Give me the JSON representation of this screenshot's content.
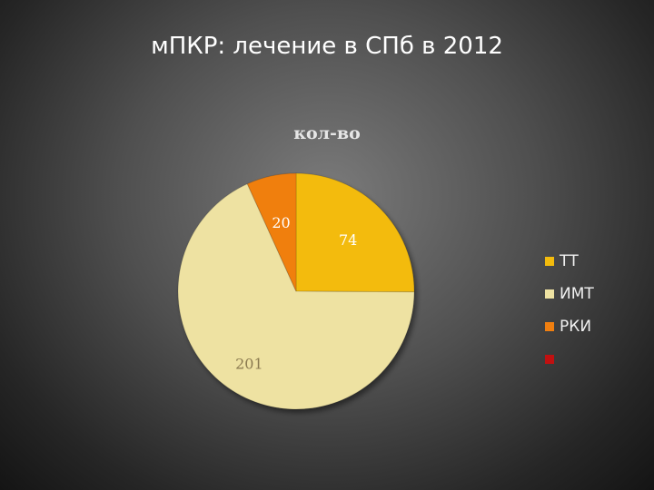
{
  "slide": {
    "title": "мПКР: лечение в СПб в 2012"
  },
  "chart_data": {
    "type": "pie",
    "title": "кол-во",
    "categories": [
      "ТТ",
      "ИМТ",
      "РКИ",
      ""
    ],
    "values": [
      74,
      201,
      20,
      0
    ],
    "data_labels": [
      "74",
      "201",
      "20",
      ""
    ],
    "colors": [
      "#f3bb0c",
      "#eee2a2",
      "#f07f10",
      "#c01010"
    ],
    "legend_position": "right"
  }
}
